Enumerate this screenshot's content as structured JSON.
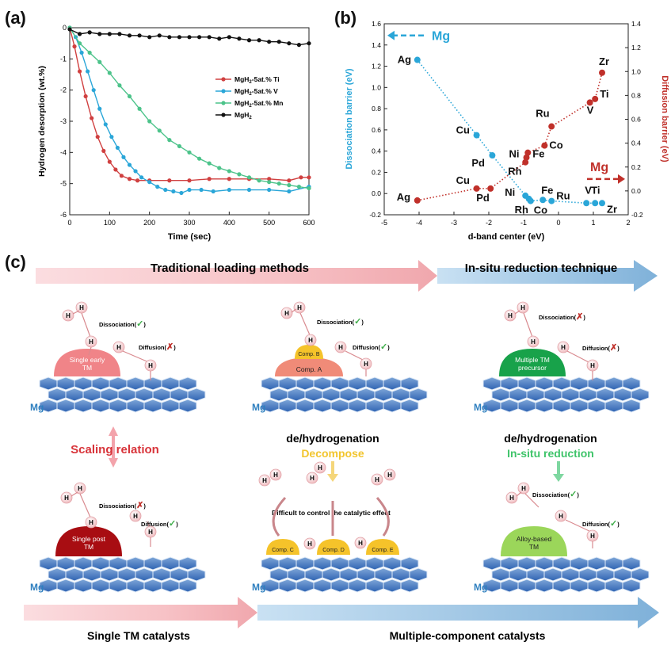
{
  "panel_labels": {
    "a": "(a)",
    "b": "(b)",
    "c": "(c)"
  },
  "chart_data": [
    {
      "type": "line",
      "xlabel": "Time (sec)",
      "ylabel": "Hydrogen desorption (wt.%)",
      "xlim": [
        0,
        600
      ],
      "ylim": [
        -6,
        0
      ],
      "xticks": [
        0,
        100,
        200,
        300,
        400,
        500,
        600
      ],
      "yticks": [
        0,
        -1,
        -2,
        -3,
        -4,
        -5,
        -6
      ],
      "legend_position": "right",
      "series": [
        {
          "name": "MgH2-5at.% Ti",
          "color": "#d04040",
          "legend": {
            "base": "MgH",
            "sub": "2",
            "rest": "-5at.% Ti"
          },
          "x": [
            0,
            12,
            25,
            40,
            55,
            70,
            85,
            100,
            115,
            130,
            150,
            170,
            200,
            250,
            300,
            350,
            400,
            450,
            500,
            550,
            580,
            600
          ],
          "y": [
            0,
            -0.6,
            -1.4,
            -2.2,
            -2.9,
            -3.5,
            -3.95,
            -4.3,
            -4.55,
            -4.75,
            -4.85,
            -4.9,
            -4.9,
            -4.9,
            -4.9,
            -4.85,
            -4.85,
            -4.85,
            -4.85,
            -4.9,
            -4.8,
            -4.8
          ]
        },
        {
          "name": "MgH2-5at.% V",
          "color": "#2aa6d8",
          "legend": {
            "base": "MgH",
            "sub": "2",
            "rest": "-5at.% V"
          },
          "x": [
            0,
            15,
            30,
            45,
            60,
            75,
            90,
            105,
            120,
            135,
            150,
            165,
            180,
            200,
            220,
            240,
            260,
            280,
            300,
            330,
            360,
            400,
            450,
            500,
            550,
            600
          ],
          "y": [
            0,
            -0.3,
            -0.8,
            -1.4,
            -2.0,
            -2.6,
            -3.1,
            -3.5,
            -3.85,
            -4.15,
            -4.4,
            -4.6,
            -4.8,
            -4.95,
            -5.1,
            -5.2,
            -5.25,
            -5.3,
            -5.2,
            -5.2,
            -5.25,
            -5.2,
            -5.2,
            -5.2,
            -5.25,
            -5.1
          ]
        },
        {
          "name": "MgH2-5at.% Mn",
          "color": "#4cc38a",
          "legend": {
            "base": "MgH",
            "sub": "2",
            "rest": "-5at.% Mn"
          },
          "x": [
            0,
            25,
            50,
            75,
            100,
            125,
            150,
            175,
            200,
            225,
            250,
            275,
            300,
            325,
            350,
            375,
            400,
            425,
            450,
            475,
            500,
            525,
            550,
            575,
            600
          ],
          "y": [
            0,
            -0.5,
            -0.8,
            -1.1,
            -1.45,
            -1.85,
            -2.2,
            -2.6,
            -3.0,
            -3.3,
            -3.6,
            -3.8,
            -4.0,
            -4.2,
            -4.35,
            -4.5,
            -4.6,
            -4.7,
            -4.8,
            -4.9,
            -4.95,
            -5.0,
            -5.05,
            -5.1,
            -5.15
          ]
        },
        {
          "name": "MgH2",
          "color": "#111111",
          "legend": {
            "base": "MgH",
            "sub": "2",
            "rest": ""
          },
          "x": [
            0,
            25,
            50,
            75,
            100,
            125,
            150,
            175,
            200,
            225,
            250,
            275,
            300,
            325,
            350,
            375,
            400,
            425,
            450,
            475,
            500,
            525,
            550,
            575,
            600
          ],
          "y": [
            -0.05,
            -0.2,
            -0.15,
            -0.2,
            -0.2,
            -0.2,
            -0.25,
            -0.25,
            -0.3,
            -0.25,
            -0.3,
            -0.3,
            -0.3,
            -0.3,
            -0.3,
            -0.35,
            -0.3,
            -0.35,
            -0.4,
            -0.4,
            -0.45,
            -0.45,
            -0.5,
            -0.55,
            -0.5
          ]
        }
      ]
    },
    {
      "type": "scatter",
      "xlabel": "d-band center (eV)",
      "ylabel_left": "Dissociation barrier (eV)",
      "ylabel_right": "Diffusion barrier (eV)",
      "xlim": [
        -5,
        2
      ],
      "ylim_left": [
        -0.2,
        1.6
      ],
      "ylim_right": [
        -0.2,
        1.4
      ],
      "xticks": [
        -5,
        -4,
        -3,
        -2,
        -1,
        0,
        1,
        2
      ],
      "yticks_left": [
        -0.2,
        0.0,
        0.2,
        0.4,
        0.6,
        0.8,
        1.0,
        1.2,
        1.4,
        1.6
      ],
      "yticks_right": [
        -0.2,
        0.0,
        0.2,
        0.4,
        0.6,
        0.8,
        1.0,
        1.2,
        1.4
      ],
      "mg_marker_left": {
        "label": "Mg",
        "y": 1.49,
        "color": "#2aa6d8"
      },
      "mg_marker_right": {
        "label": "Mg",
        "y": 0.1,
        "color": "#c0302a"
      },
      "series": [
        {
          "axis": "left",
          "color": "#2aa6d8",
          "points": [
            {
              "label": "Ag",
              "x": -4.05,
              "y": 1.26
            },
            {
              "label": "Cu",
              "x": -2.35,
              "y": 0.55
            },
            {
              "label": "Pd",
              "x": -1.9,
              "y": 0.36
            },
            {
              "label": "Ni",
              "x": -0.95,
              "y": -0.02
            },
            {
              "label": "Rh",
              "x": -0.85,
              "y": -0.05
            },
            {
              "label": "Co",
              "x": -0.8,
              "y": -0.07
            },
            {
              "label": "Fe",
              "x": -0.45,
              "y": -0.06
            },
            {
              "label": "Ru",
              "x": -0.2,
              "y": -0.07
            },
            {
              "label": "V",
              "x": 0.8,
              "y": -0.09
            },
            {
              "label": "Ti",
              "x": 1.05,
              "y": -0.09
            },
            {
              "label": "Zr",
              "x": 1.25,
              "y": -0.09
            }
          ]
        },
        {
          "axis": "right",
          "color": "#c0302a",
          "points": [
            {
              "label": "Ag",
              "x": -4.05,
              "y": -0.08
            },
            {
              "label": "Cu",
              "x": -2.35,
              "y": 0.02
            },
            {
              "label": "Pd",
              "x": -1.95,
              "y": 0.02
            },
            {
              "label": "Rh",
              "x": -0.95,
              "y": 0.24
            },
            {
              "label": "Ni",
              "x": -0.92,
              "y": 0.28
            },
            {
              "label": "Fe",
              "x": -0.88,
              "y": 0.32
            },
            {
              "label": "Co",
              "x": -0.4,
              "y": 0.38
            },
            {
              "label": "Ru",
              "x": -0.2,
              "y": 0.54
            },
            {
              "label": "V",
              "x": 0.9,
              "y": 0.74
            },
            {
              "label": "Ti",
              "x": 1.05,
              "y": 0.77
            },
            {
              "label": "Zr",
              "x": 1.25,
              "y": 0.99
            }
          ]
        }
      ]
    }
  ],
  "diagram": {
    "top_arrow_left": "Traditional loading methods",
    "top_arrow_right": "In-situ reduction technique",
    "bottom_arrow_left": "Single TM catalysts",
    "bottom_arrow_right": "Multiple-component catalysts",
    "mg": "Mg",
    "h": "H",
    "dissociation": "Dissociation(",
    "diffusion": "Diffusion(",
    "close_paren": ")",
    "check": "✓",
    "cross": "✗",
    "single_early_line1": "Single early",
    "single_early_line2": "TM",
    "single_post_line1": "Single post",
    "single_post_line2": "TM",
    "comp_a": "Comp. A",
    "comp_b": "Comp. B",
    "comp_c": "Comp. C",
    "comp_d": "Comp. D",
    "comp_e": "Comp. E",
    "multiple_tm_line1": "Multiple TM",
    "multiple_tm_line2": "precursor",
    "alloy_line1": "Alloy-based",
    "alloy_line2": "TM",
    "scaling_relation": "Scaling relation",
    "dehydrogenation": "de/hydrogenation",
    "decompose": "Decompose",
    "insitu_reduction": "In-situ reduction",
    "difficult": "Difficult to control the catalytic effect",
    "colors": {
      "red": "#d8343a",
      "yellow": "#f2c52e",
      "green": "#3fc46a",
      "blue": "#2e7fbf"
    }
  }
}
